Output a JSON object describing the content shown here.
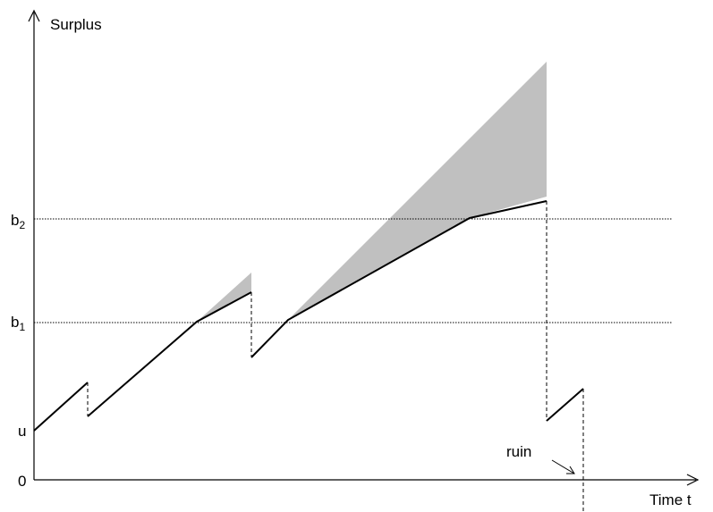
{
  "labels": {
    "y_axis": "Surplus",
    "x_axis": "Time t",
    "u": "u",
    "zero": "0",
    "b1_base": "b",
    "b1_sub": "1",
    "b2_base": "b",
    "b2_sub": "2",
    "ruin": "ruin"
  },
  "colors": {
    "line": "#000000",
    "shade": "#c0c0c0",
    "background": "#ffffff"
  }
}
